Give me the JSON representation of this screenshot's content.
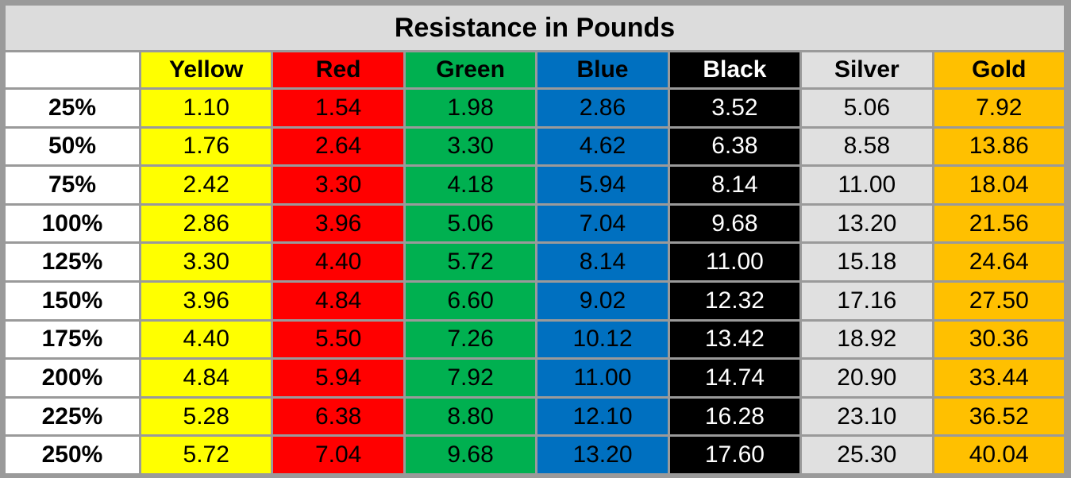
{
  "table": {
    "title": "Resistance in Pounds",
    "columns": [
      {
        "label": "Yellow",
        "color": "#ffff00",
        "text_color": "#000000"
      },
      {
        "label": "Red",
        "color": "#ff0000",
        "text_color": "#000000"
      },
      {
        "label": "Green",
        "color": "#00b050",
        "text_color": "#000000"
      },
      {
        "label": "Blue",
        "color": "#0070c0",
        "text_color": "#000000"
      },
      {
        "label": "Black",
        "color": "#000000",
        "text_color": "#ffffff"
      },
      {
        "label": "Silver",
        "color": "#e0e0e0",
        "text_color": "#000000"
      },
      {
        "label": "Gold",
        "color": "#ffc000",
        "text_color": "#000000"
      }
    ],
    "rows": [
      {
        "label": "25%",
        "values": [
          "1.10",
          "1.54",
          "1.98",
          "2.86",
          "3.52",
          "5.06",
          "7.92"
        ]
      },
      {
        "label": "50%",
        "values": [
          "1.76",
          "2.64",
          "3.30",
          "4.62",
          "6.38",
          "8.58",
          "13.86"
        ]
      },
      {
        "label": "75%",
        "values": [
          "2.42",
          "3.30",
          "4.18",
          "5.94",
          "8.14",
          "11.00",
          "18.04"
        ]
      },
      {
        "label": "100%",
        "values": [
          "2.86",
          "3.96",
          "5.06",
          "7.04",
          "9.68",
          "13.20",
          "21.56"
        ]
      },
      {
        "label": "125%",
        "values": [
          "3.30",
          "4.40",
          "5.72",
          "8.14",
          "11.00",
          "15.18",
          "24.64"
        ]
      },
      {
        "label": "150%",
        "values": [
          "3.96",
          "4.84",
          "6.60",
          "9.02",
          "12.32",
          "17.16",
          "27.50"
        ]
      },
      {
        "label": "175%",
        "values": [
          "4.40",
          "5.50",
          "7.26",
          "10.12",
          "13.42",
          "18.92",
          "30.36"
        ]
      },
      {
        "label": "200%",
        "values": [
          "4.84",
          "5.94",
          "7.92",
          "11.00",
          "14.74",
          "20.90",
          "33.44"
        ]
      },
      {
        "label": "225%",
        "values": [
          "5.28",
          "6.38",
          "8.80",
          "12.10",
          "16.28",
          "23.10",
          "36.52"
        ]
      },
      {
        "label": "250%",
        "values": [
          "5.72",
          "7.04",
          "9.68",
          "13.20",
          "17.60",
          "25.30",
          "40.04"
        ]
      }
    ]
  }
}
